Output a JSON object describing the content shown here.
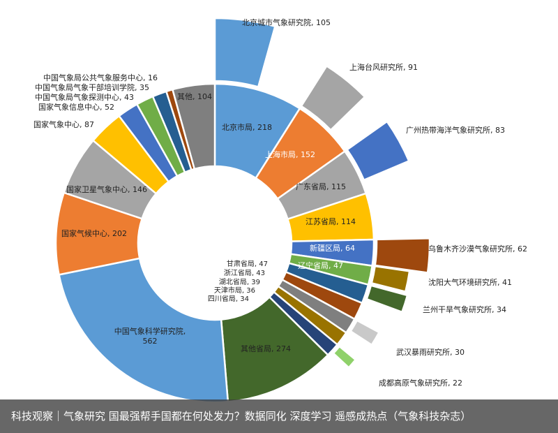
{
  "chart_data": {
    "type": "sunburst-donut",
    "inner_ring": [
      {
        "name": "北京市局",
        "value": 218,
        "color": "#5b9bd5",
        "label": "北京市局, 218"
      },
      {
        "name": "上海市局",
        "value": 152,
        "color": "#ed7d31",
        "label": "上海市局, 152"
      },
      {
        "name": "广东省局",
        "value": 115,
        "color": "#a5a5a5",
        "label": "广东省局, 115"
      },
      {
        "name": "江苏省局",
        "value": 114,
        "color": "#ffc000",
        "label": "江苏省局, 114"
      },
      {
        "name": "新疆区局",
        "value": 64,
        "color": "#4472c4",
        "label": "新疆区局, 64"
      },
      {
        "name": "辽宁省局",
        "value": 47,
        "color": "#70ad47",
        "label": "辽宁省局, 47"
      },
      {
        "name": "甘肃省局",
        "value": 47,
        "color": "#255e91",
        "label": "甘肃省局, 47"
      },
      {
        "name": "浙江省局",
        "value": 43,
        "color": "#9e480e",
        "label": "浙江省局, 43"
      },
      {
        "name": "湖北省局",
        "value": 39,
        "color": "#7f7f7f",
        "label": "湖北省局, 39"
      },
      {
        "name": "天津市局",
        "value": 36,
        "color": "#997300",
        "label": "天津市局, 36"
      },
      {
        "name": "四川省局",
        "value": 34,
        "color": "#264478",
        "label": "四川省局, 34"
      },
      {
        "name": "其他省局",
        "value": 274,
        "color": "#43682b",
        "label": "其他省局, 274"
      },
      {
        "name": "中国气象科学研究院",
        "value": 562,
        "color": "#5b9bd5",
        "label": "中国气象科学研究院,\n562"
      },
      {
        "name": "国家气候中心",
        "value": 202,
        "color": "#ed7d31",
        "label": "国家气候中心, 202"
      },
      {
        "name": "国家卫星气象中心",
        "value": 146,
        "color": "#a5a5a5",
        "label": "国家卫星气象中心, 146"
      },
      {
        "name": "国家气象中心",
        "value": 87,
        "color": "#ffc000",
        "label": "国家气象中心, 87"
      },
      {
        "name": "国家气象信息中心",
        "value": 52,
        "color": "#4472c4",
        "label": "国家气象信息中心, 52"
      },
      {
        "name": "中国气象局气象探测中心",
        "value": 43,
        "color": "#70ad47",
        "label": "中国气象局气象探测中心, 43"
      },
      {
        "name": "中国气象局气象干部培训学院",
        "value": 35,
        "color": "#255e91",
        "label": "中国气象局气象干部培训学院, 35"
      },
      {
        "name": "中国气象局公共气象服务中心",
        "value": 16,
        "color": "#9e480e",
        "label": "中国气象局公共气象服务中心, 16"
      },
      {
        "name": "其他",
        "value": 104,
        "color": "#7f7f7f",
        "label": "其他, 104"
      }
    ],
    "outer_ring": [
      {
        "name": "北京城市气象研究院",
        "value": 105,
        "parent": "北京市局",
        "color": "#5b9bd5",
        "label": "北京城市气象研究院, 105"
      },
      {
        "name": "上海台风研究所",
        "value": 91,
        "parent": "上海市局",
        "color": "#a5a5a5",
        "label": "上海台风研究所, 91"
      },
      {
        "name": "广州热带海洋气象研究所",
        "value": 83,
        "parent": "广东省局",
        "color": "#4472c4",
        "label": "广州热带海洋气象研究所, 83"
      },
      {
        "name": "乌鲁木齐沙漠气象研究所",
        "value": 62,
        "parent": "新疆区局",
        "color": "#9e480e",
        "label": "乌鲁木齐沙漠气象研究所, 62"
      },
      {
        "name": "沈阳大气环境研究所",
        "value": 41,
        "parent": "辽宁省局",
        "color": "#997300",
        "label": "沈阳大气环境研究所, 41"
      },
      {
        "name": "兰州干旱气象研究所",
        "value": 34,
        "parent": "甘肃省局",
        "color": "#43682b",
        "label": "兰州干旱气象研究所, 34"
      },
      {
        "name": "武汉暴雨研究所",
        "value": 30,
        "parent": "湖北省局",
        "color": "#c9c9c9",
        "label": "武汉暴雨研究所, 30"
      },
      {
        "name": "成都高原气象研究所",
        "value": 22,
        "parent": "四川省局",
        "color": "#8fd16a",
        "label": "成都高原气象研究所, 22"
      }
    ]
  },
  "caption": "科技观察｜气象研究 国最强帮手国都在何处发力？数据同化 深度学习 遥感成热点（气象科技杂志）"
}
